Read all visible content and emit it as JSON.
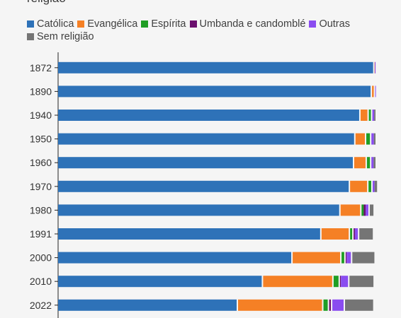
{
  "chart_data": {
    "type": "bar",
    "orientation": "horizontal",
    "stacked": true,
    "title": "religião",
    "categories": [
      "1872",
      "1890",
      "1940",
      "1950",
      "1960",
      "1970",
      "1980",
      "1991",
      "2000",
      "2010",
      "2022"
    ],
    "series": [
      {
        "name": "Católica",
        "color": "#2e72b8",
        "values": [
          99.7,
          98.9,
          95.3,
          93.7,
          93.3,
          92.0,
          89.0,
          83.0,
          73.9,
          64.6,
          56.7
        ]
      },
      {
        "name": "Evangélica",
        "color": "#f58025",
        "values": [
          0.1,
          1.0,
          2.6,
          3.4,
          4.0,
          5.8,
          6.6,
          9.0,
          15.4,
          22.2,
          26.9
        ]
      },
      {
        "name": "Espírita",
        "color": "#1f9e24",
        "values": [
          0.0,
          0.0,
          1.1,
          1.6,
          1.4,
          1.3,
          0.7,
          1.1,
          1.3,
          2.0,
          1.8
        ]
      },
      {
        "name": "Umbanda e candomblé",
        "color": "#6b0f6e",
        "values": [
          0.0,
          0.0,
          0.0,
          0.0,
          0.0,
          0.0,
          0.6,
          0.4,
          0.3,
          0.3,
          1.0
        ]
      },
      {
        "name": "Outras",
        "color": "#8a4cf0",
        "values": [
          0.2,
          0.1,
          0.6,
          0.8,
          0.7,
          0.6,
          1.3,
          1.4,
          1.8,
          2.7,
          4.0
        ]
      },
      {
        "name": "Sem religião",
        "color": "#757575",
        "values": [
          0.0,
          0.0,
          0.4,
          0.5,
          0.6,
          0.8,
          1.6,
          4.7,
          7.4,
          8.0,
          9.3
        ]
      }
    ],
    "xlim": [
      0,
      100
    ],
    "grid": false,
    "legend_position": "top-left"
  }
}
